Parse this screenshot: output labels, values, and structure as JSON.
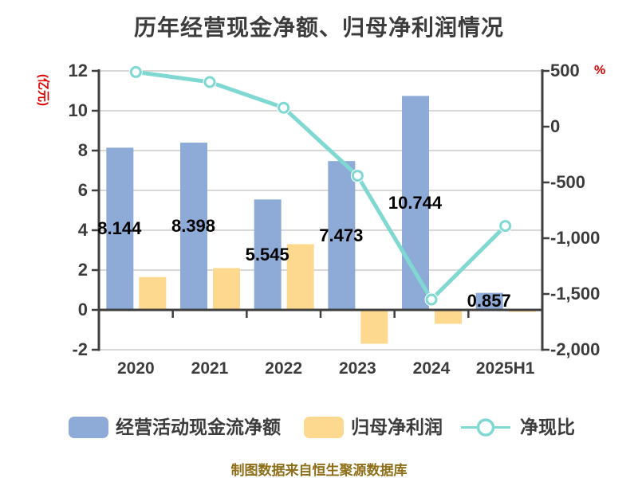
{
  "title": "历年经营现金净额、归母净利润情况",
  "footer": "制图数据来自恒生聚源数据库",
  "colors": {
    "blue": "#8EABD8",
    "yellow": "#FCD98F",
    "teal": "#7FD8D2",
    "grid": "#D8D8D8",
    "axis": "#3F3F3F",
    "text": "#3C3C3C",
    "red": "#DE0000",
    "footer": "#8F6E18",
    "label": "#000000"
  },
  "chart_data": {
    "type": "bar",
    "subtype": "grouped-bars-with-line",
    "categories": [
      "2020",
      "2021",
      "2022",
      "2023",
      "2024",
      "2025H1"
    ],
    "series": [
      {
        "name": "经营活动现金流净额",
        "type": "bar",
        "axis": "left",
        "color_key": "blue",
        "values": [
          8.144,
          8.398,
          5.545,
          7.473,
          10.744,
          0.857
        ],
        "labels": [
          "8.144",
          "8.398",
          "5.545",
          "7.473",
          "10.744",
          "0.857"
        ]
      },
      {
        "name": "归母净利润",
        "type": "bar",
        "axis": "left",
        "color_key": "yellow",
        "values": [
          1.65,
          2.1,
          3.3,
          -1.7,
          -0.7,
          -0.1
        ]
      },
      {
        "name": "净现比",
        "type": "line",
        "axis": "right",
        "color_key": "teal",
        "values": [
          490,
          400,
          170,
          -440,
          -1550,
          -890
        ]
      }
    ],
    "axis_left": {
      "unit": "(亿元)",
      "ticks": [
        12,
        10,
        8,
        6,
        4,
        2,
        0,
        -2
      ],
      "min": -2,
      "max": 12
    },
    "axis_right": {
      "unit": "%",
      "ticks": [
        "500",
        "0",
        "-500",
        "-1,000",
        "-1,500",
        "-2,000"
      ],
      "min": -2000,
      "max": 500
    },
    "legend_position": "bottom",
    "grid": "horizontal-only"
  }
}
